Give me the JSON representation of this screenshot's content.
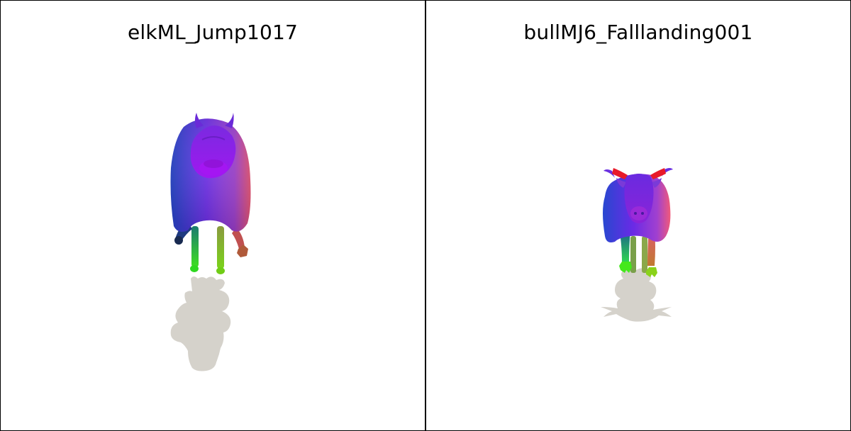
{
  "panels": [
    {
      "title": "elkML_Jump1017"
    },
    {
      "title": "bullMJ6_Falllanding001"
    }
  ],
  "colors": {
    "background": "#ffffff",
    "border": "#000000",
    "shadow": "#d5d2cb",
    "body_purple": "#8a1fe0",
    "body_blue": "#2a3fd0",
    "body_pink": "#e8507a",
    "leg_green": "#3ad22a",
    "horn_red": "#e81a2a"
  }
}
